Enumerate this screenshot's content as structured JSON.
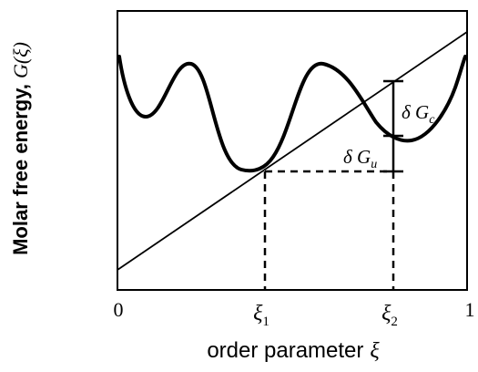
{
  "figure": {
    "ylabel": "Molar free energy,",
    "ylabel_math": "G(ξ)",
    "xlabel": "order parameter",
    "xlabel_math": "ξ",
    "tick_0": "0",
    "tick_1": "1",
    "tick_xi1": "ξ",
    "tick_xi1_sub": "1",
    "tick_xi2": "ξ",
    "tick_xi2_sub": "2",
    "label_dGc": "δ G",
    "label_dGc_sub": "c",
    "label_dGu": "δ G",
    "label_dGu_sub": "u"
  },
  "colors": {
    "stroke": "#000000",
    "background": "#ffffff"
  }
}
